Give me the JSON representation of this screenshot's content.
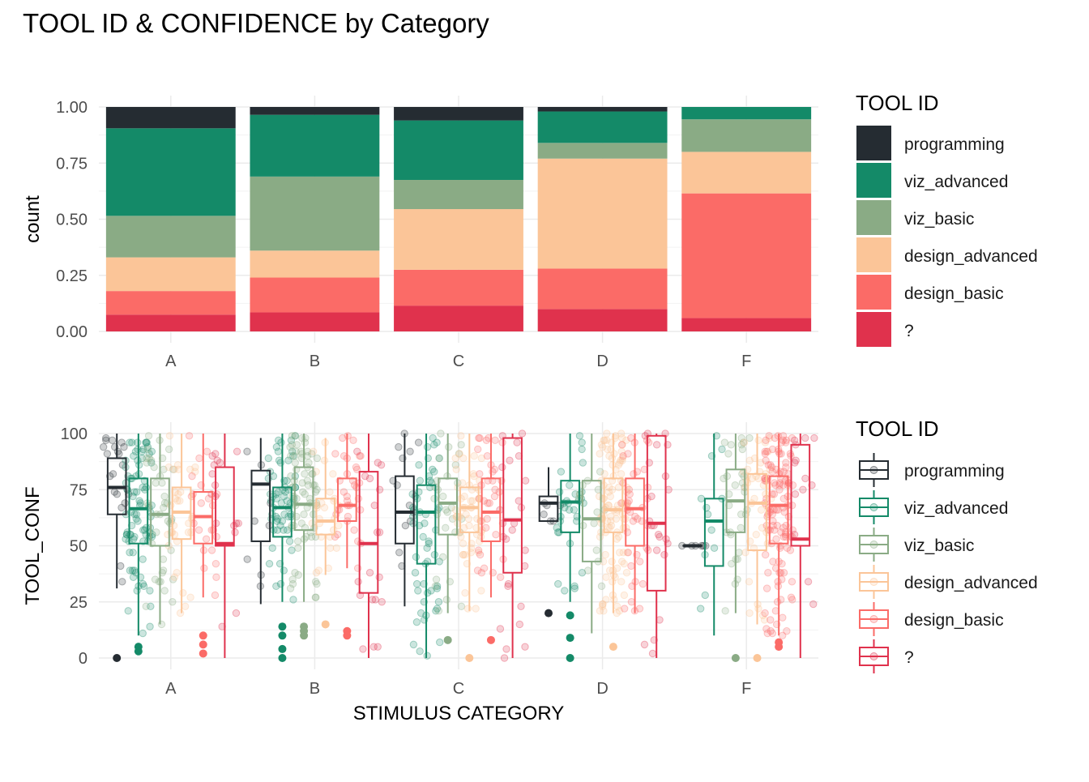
{
  "page_title": "TOOL ID & CONFIDENCE by Category",
  "chart_data": [
    {
      "type": "bar",
      "stacked": "fill",
      "ylabel": "count",
      "xlabel": "",
      "categories": [
        "A",
        "B",
        "C",
        "D",
        "F"
      ],
      "ylim": [
        0,
        1
      ],
      "yticks": [
        "0.00",
        "0.25",
        "0.50",
        "0.75",
        "1.00"
      ],
      "legend": {
        "title": "TOOL ID",
        "position": "right"
      },
      "grid": true,
      "series": [
        {
          "name": "programming",
          "color": "#252c32",
          "values": [
            0.095,
            0.035,
            0.06,
            0.02,
            0.0
          ]
        },
        {
          "name": "viz_advanced",
          "color": "#148a68",
          "values": [
            0.39,
            0.275,
            0.265,
            0.14,
            0.055
          ]
        },
        {
          "name": "viz_basic",
          "color": "#8aab85",
          "values": [
            0.185,
            0.33,
            0.13,
            0.07,
            0.145
          ]
        },
        {
          "name": "design_advanced",
          "color": "#fbc598",
          "values": [
            0.15,
            0.12,
            0.27,
            0.49,
            0.185
          ]
        },
        {
          "name": "design_basic",
          "color": "#fb6b67",
          "values": [
            0.105,
            0.155,
            0.16,
            0.18,
            0.555
          ]
        },
        {
          "name": "?",
          "color": "#e0324d",
          "values": [
            0.075,
            0.085,
            0.115,
            0.1,
            0.06
          ]
        }
      ]
    },
    {
      "type": "boxplot",
      "xlabel": "STIMULUS CATEGORY",
      "ylabel": "TOOL_CONF",
      "categories": [
        "A",
        "B",
        "C",
        "D",
        "F"
      ],
      "ylim": [
        0,
        100
      ],
      "yticks": [
        "0",
        "25",
        "50",
        "75",
        "100"
      ],
      "legend": {
        "title": "TOOL ID",
        "position": "right"
      },
      "grid": true,
      "series": [
        {
          "name": "programming",
          "color": "#252c32",
          "boxes": [
            {
              "min": 31,
              "q1": 64,
              "median": 76,
              "q3": 89,
              "max": 100,
              "outliers": [
                0
              ]
            },
            {
              "min": 24,
              "q1": 52,
              "median": 77.5,
              "q3": 83.5,
              "max": 98,
              "outliers": []
            },
            {
              "min": 23,
              "q1": 51,
              "median": 65,
              "q3": 81,
              "max": 100,
              "outliers": []
            },
            {
              "min": 61,
              "q1": 61,
              "median": 69,
              "q3": 72,
              "max": 85,
              "outliers": [
                20
              ]
            },
            {
              "min": 50,
              "q1": 50,
              "median": 50,
              "q3": 50,
              "max": 50,
              "outliers": []
            }
          ]
        },
        {
          "name": "viz_advanced",
          "color": "#148a68",
          "boxes": [
            {
              "min": 10,
              "q1": 51,
              "median": 66.5,
              "q3": 80,
              "max": 100,
              "outliers": [
                5,
                3
              ]
            },
            {
              "min": 25,
              "q1": 54,
              "median": 67,
              "q3": 76,
              "max": 100,
              "outliers": [
                14,
                10,
                4,
                0
              ]
            },
            {
              "min": 0,
              "q1": 42,
              "median": 65,
              "q3": 77,
              "max": 100,
              "outliers": []
            },
            {
              "min": 25,
              "q1": 56,
              "median": 69.5,
              "q3": 79,
              "max": 100,
              "outliers": [
                19,
                9,
                0
              ]
            },
            {
              "min": 10,
              "q1": 41,
              "median": 61,
              "q3": 71,
              "max": 100,
              "outliers": []
            }
          ]
        },
        {
          "name": "viz_basic",
          "color": "#8aab85",
          "boxes": [
            {
              "min": 15,
              "q1": 50,
              "median": 64,
              "q3": 80,
              "max": 100,
              "outliers": []
            },
            {
              "min": 25,
              "q1": 57,
              "median": 68.5,
              "q3": 85,
              "max": 100,
              "outliers": [
                14,
                12,
                10
              ]
            },
            {
              "min": 20,
              "q1": 55,
              "median": 69,
              "q3": 80,
              "max": 100,
              "outliers": [
                8
              ]
            },
            {
              "min": 11,
              "q1": 43,
              "median": 62,
              "q3": 79,
              "max": 100,
              "outliers": []
            },
            {
              "min": 20,
              "q1": 56,
              "median": 70,
              "q3": 84,
              "max": 100,
              "outliers": [
                0
              ]
            }
          ]
        },
        {
          "name": "design_advanced",
          "color": "#fbc598",
          "boxes": [
            {
              "min": 20,
              "q1": 53,
              "median": 65,
              "q3": 76,
              "max": 100,
              "outliers": []
            },
            {
              "min": 37,
              "q1": 55,
              "median": 61,
              "q3": 71,
              "max": 98,
              "outliers": [
                15
              ]
            },
            {
              "min": 21,
              "q1": 56,
              "median": 67,
              "q3": 76,
              "max": 100,
              "outliers": [
                0
              ]
            },
            {
              "min": 20,
              "q1": 56,
              "median": 66,
              "q3": 80,
              "max": 100,
              "outliers": [
                5
              ]
            },
            {
              "min": 15,
              "q1": 48,
              "median": 69,
              "q3": 82,
              "max": 100,
              "outliers": [
                0
              ]
            }
          ]
        },
        {
          "name": "design_basic",
          "color": "#fb6b67",
          "boxes": [
            {
              "min": 27,
              "q1": 51,
              "median": 63,
              "q3": 74,
              "max": 100,
              "outliers": [
                10,
                6,
                2
              ]
            },
            {
              "min": 40,
              "q1": 61,
              "median": 68,
              "q3": 80,
              "max": 100,
              "outliers": [
                12,
                10
              ]
            },
            {
              "min": 27,
              "q1": 52,
              "median": 65,
              "q3": 80,
              "max": 100,
              "outliers": [
                8
              ]
            },
            {
              "min": 20,
              "q1": 50,
              "median": 66.5,
              "q3": 80,
              "max": 100,
              "outliers": []
            },
            {
              "min": 10,
              "q1": 51,
              "median": 68,
              "q3": 81,
              "max": 100,
              "outliers": [
                7,
                5
              ]
            }
          ]
        },
        {
          "name": "?",
          "color": "#e0324d",
          "boxes": [
            {
              "min": 0,
              "q1": 50,
              "median": 51,
              "q3": 85,
              "max": 100,
              "outliers": []
            },
            {
              "min": 0,
              "q1": 29,
              "median": 51,
              "q3": 83,
              "max": 100,
              "outliers": []
            },
            {
              "min": 0,
              "q1": 38,
              "median": 61.5,
              "q3": 98,
              "max": 100,
              "outliers": []
            },
            {
              "min": 0,
              "q1": 30,
              "median": 60,
              "q3": 99,
              "max": 100,
              "outliers": []
            },
            {
              "min": 0,
              "q1": 50,
              "median": 53,
              "q3": 95,
              "max": 100,
              "outliers": []
            }
          ]
        }
      ]
    }
  ]
}
